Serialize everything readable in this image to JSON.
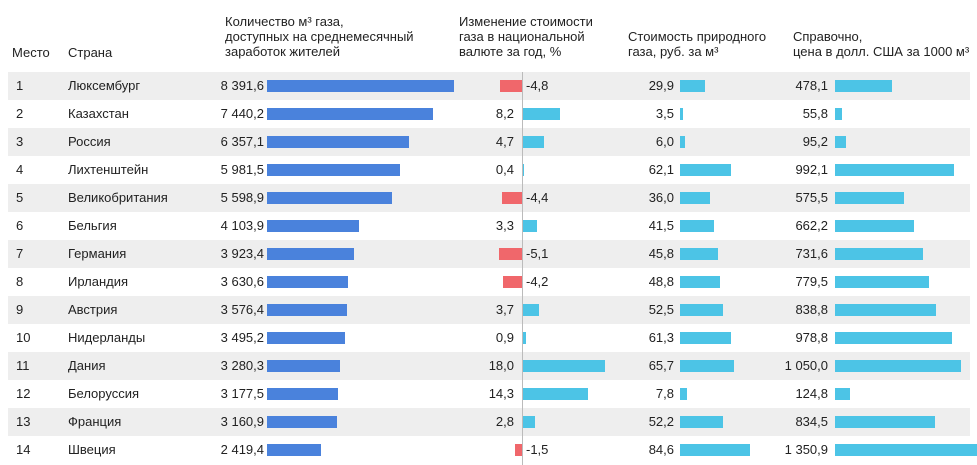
{
  "headers": {
    "rank": "Место",
    "country": "Страна",
    "volume": [
      "Количество м³ газа,",
      "доступных на среднемесячный",
      "заработок жителей"
    ],
    "change": [
      "Изменение стоимости",
      "газа в национальной",
      "валюте за год, %"
    ],
    "price_rub": [
      "Стоимость природного",
      "газа, руб. за м³"
    ],
    "price_usd": [
      "Справочно,",
      "цена в долл. США за 1000 м³"
    ]
  },
  "colors": {
    "volume_bar": "#4a82dc",
    "positive_bar": "#4cc4e6",
    "negative_bar": "#f0676b",
    "row_shade": "#eeeeee"
  },
  "chart_data": {
    "type": "table",
    "columns": [
      "Место",
      "Страна",
      "Количество м³ газа, доступных на среднемесячный заработок жителей",
      "Изменение стоимости газа в национальной валюте за год, %",
      "Стоимость природного газа, руб. за м³",
      "Справочно, цена в долл. США за 1000 м³"
    ],
    "rows": [
      {
        "rank": "1",
        "country": "Люксембург",
        "volume": 8391.6,
        "volume_text": "8 391,6",
        "change": -4.8,
        "change_text": "-4,8",
        "price_rub": 29.9,
        "price_rub_text": "29,9",
        "price_usd": 478.1,
        "price_usd_text": "478,1"
      },
      {
        "rank": "2",
        "country": "Казахстан",
        "volume": 7440.2,
        "volume_text": "7 440,2",
        "change": 8.2,
        "change_text": "8,2",
        "price_rub": 3.5,
        "price_rub_text": "3,5",
        "price_usd": 55.8,
        "price_usd_text": "55,8"
      },
      {
        "rank": "3",
        "country": "Россия",
        "volume": 6357.1,
        "volume_text": "6 357,1",
        "change": 4.7,
        "change_text": "4,7",
        "price_rub": 6.0,
        "price_rub_text": "6,0",
        "price_usd": 95.2,
        "price_usd_text": "95,2"
      },
      {
        "rank": "4",
        "country": "Лихтенштейн",
        "volume": 5981.5,
        "volume_text": "5 981,5",
        "change": 0.4,
        "change_text": "0,4",
        "price_rub": 62.1,
        "price_rub_text": "62,1",
        "price_usd": 992.1,
        "price_usd_text": "992,1"
      },
      {
        "rank": "5",
        "country": "Великобритания",
        "volume": 5598.9,
        "volume_text": "5 598,9",
        "change": -4.4,
        "change_text": "-4,4",
        "price_rub": 36.0,
        "price_rub_text": "36,0",
        "price_usd": 575.5,
        "price_usd_text": "575,5"
      },
      {
        "rank": "6",
        "country": "Бельгия",
        "volume": 4103.9,
        "volume_text": "4 103,9",
        "change": 3.3,
        "change_text": "3,3",
        "price_rub": 41.5,
        "price_rub_text": "41,5",
        "price_usd": 662.2,
        "price_usd_text": "662,2"
      },
      {
        "rank": "7",
        "country": "Германия",
        "volume": 3923.4,
        "volume_text": "3 923,4",
        "change": -5.1,
        "change_text": "-5,1",
        "price_rub": 45.8,
        "price_rub_text": "45,8",
        "price_usd": 731.6,
        "price_usd_text": "731,6"
      },
      {
        "rank": "8",
        "country": "Ирландия",
        "volume": 3630.6,
        "volume_text": "3 630,6",
        "change": -4.2,
        "change_text": "-4,2",
        "price_rub": 48.8,
        "price_rub_text": "48,8",
        "price_usd": 779.5,
        "price_usd_text": "779,5"
      },
      {
        "rank": "9",
        "country": "Австрия",
        "volume": 3576.4,
        "volume_text": "3 576,4",
        "change": 3.7,
        "change_text": "3,7",
        "price_rub": 52.5,
        "price_rub_text": "52,5",
        "price_usd": 838.8,
        "price_usd_text": "838,8"
      },
      {
        "rank": "10",
        "country": "Нидерланды",
        "volume": 3495.2,
        "volume_text": "3 495,2",
        "change": 0.9,
        "change_text": "0,9",
        "price_rub": 61.3,
        "price_rub_text": "61,3",
        "price_usd": 978.8,
        "price_usd_text": "978,8"
      },
      {
        "rank": "11",
        "country": "Дания",
        "volume": 3280.3,
        "volume_text": "3 280,3",
        "change": 18.0,
        "change_text": "18,0",
        "price_rub": 65.7,
        "price_rub_text": "65,7",
        "price_usd": 1050.0,
        "price_usd_text": "1 050,0"
      },
      {
        "rank": "12",
        "country": "Белоруссия",
        "volume": 3177.5,
        "volume_text": "3 177,5",
        "change": 14.3,
        "change_text": "14,3",
        "price_rub": 7.8,
        "price_rub_text": "7,8",
        "price_usd": 124.8,
        "price_usd_text": "124,8"
      },
      {
        "rank": "13",
        "country": "Франция",
        "volume": 3160.9,
        "volume_text": "3 160,9",
        "change": 2.8,
        "change_text": "2,8",
        "price_rub": 52.2,
        "price_rub_text": "52,2",
        "price_usd": 834.5,
        "price_usd_text": "834,5"
      },
      {
        "rank": "14",
        "country": "Швеция",
        "volume": 2419.4,
        "volume_text": "2 419,4",
        "change": -1.5,
        "change_text": "-1,5",
        "price_rub": 84.6,
        "price_rub_text": "84,6",
        "price_usd": 1350.9,
        "price_usd_text": "1 350,9"
      }
    ]
  }
}
